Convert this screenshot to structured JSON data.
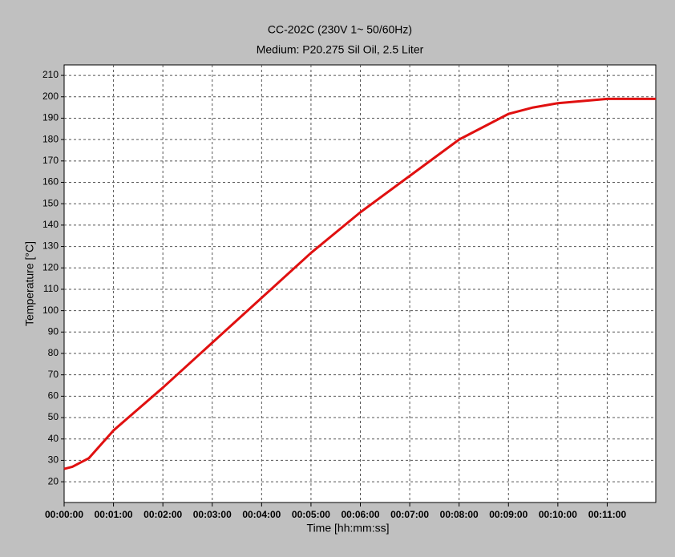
{
  "chart_data": {
    "type": "line",
    "title": "CC-202C (230V 1~ 50/60Hz)",
    "subtitle": "Medium: P20.275 Sil Oil, 2.5 Liter",
    "x_label": "Time [hh:mm:ss]",
    "y_label": "Temperature [°C]",
    "x": [
      0,
      10,
      20,
      30,
      60,
      90,
      120,
      180,
      240,
      300,
      360,
      420,
      480,
      540,
      570,
      600,
      660,
      719
    ],
    "series": [
      {
        "name": "Temperature",
        "color": "#e01010",
        "values": [
          26,
          27,
          29,
          31,
          44,
          54,
          64,
          85,
          106,
          127,
          146,
          163,
          180,
          192,
          195,
          197,
          199,
          199
        ]
      }
    ],
    "xlim": [
      0,
      719
    ],
    "xticks": [
      {
        "value": 0,
        "label": "00:00:00"
      },
      {
        "value": 60,
        "label": "00:01:00"
      },
      {
        "value": 120,
        "label": "00:02:00"
      },
      {
        "value": 180,
        "label": "00:03:00"
      },
      {
        "value": 240,
        "label": "00:04:00"
      },
      {
        "value": 300,
        "label": "00:05:00"
      },
      {
        "value": 360,
        "label": "00:06:00"
      },
      {
        "value": 420,
        "label": "00:07:00"
      },
      {
        "value": 480,
        "label": "00:08:00"
      },
      {
        "value": 540,
        "label": "00:09:00"
      },
      {
        "value": 600,
        "label": "00:10:00"
      },
      {
        "value": 660,
        "label": "00:11:00"
      }
    ],
    "ylim": [
      10.3,
      214.9
    ],
    "yticks": [
      20,
      30,
      40,
      50,
      60,
      70,
      80,
      90,
      100,
      110,
      120,
      130,
      140,
      150,
      160,
      170,
      180,
      190,
      200,
      210
    ],
    "grid": true
  }
}
